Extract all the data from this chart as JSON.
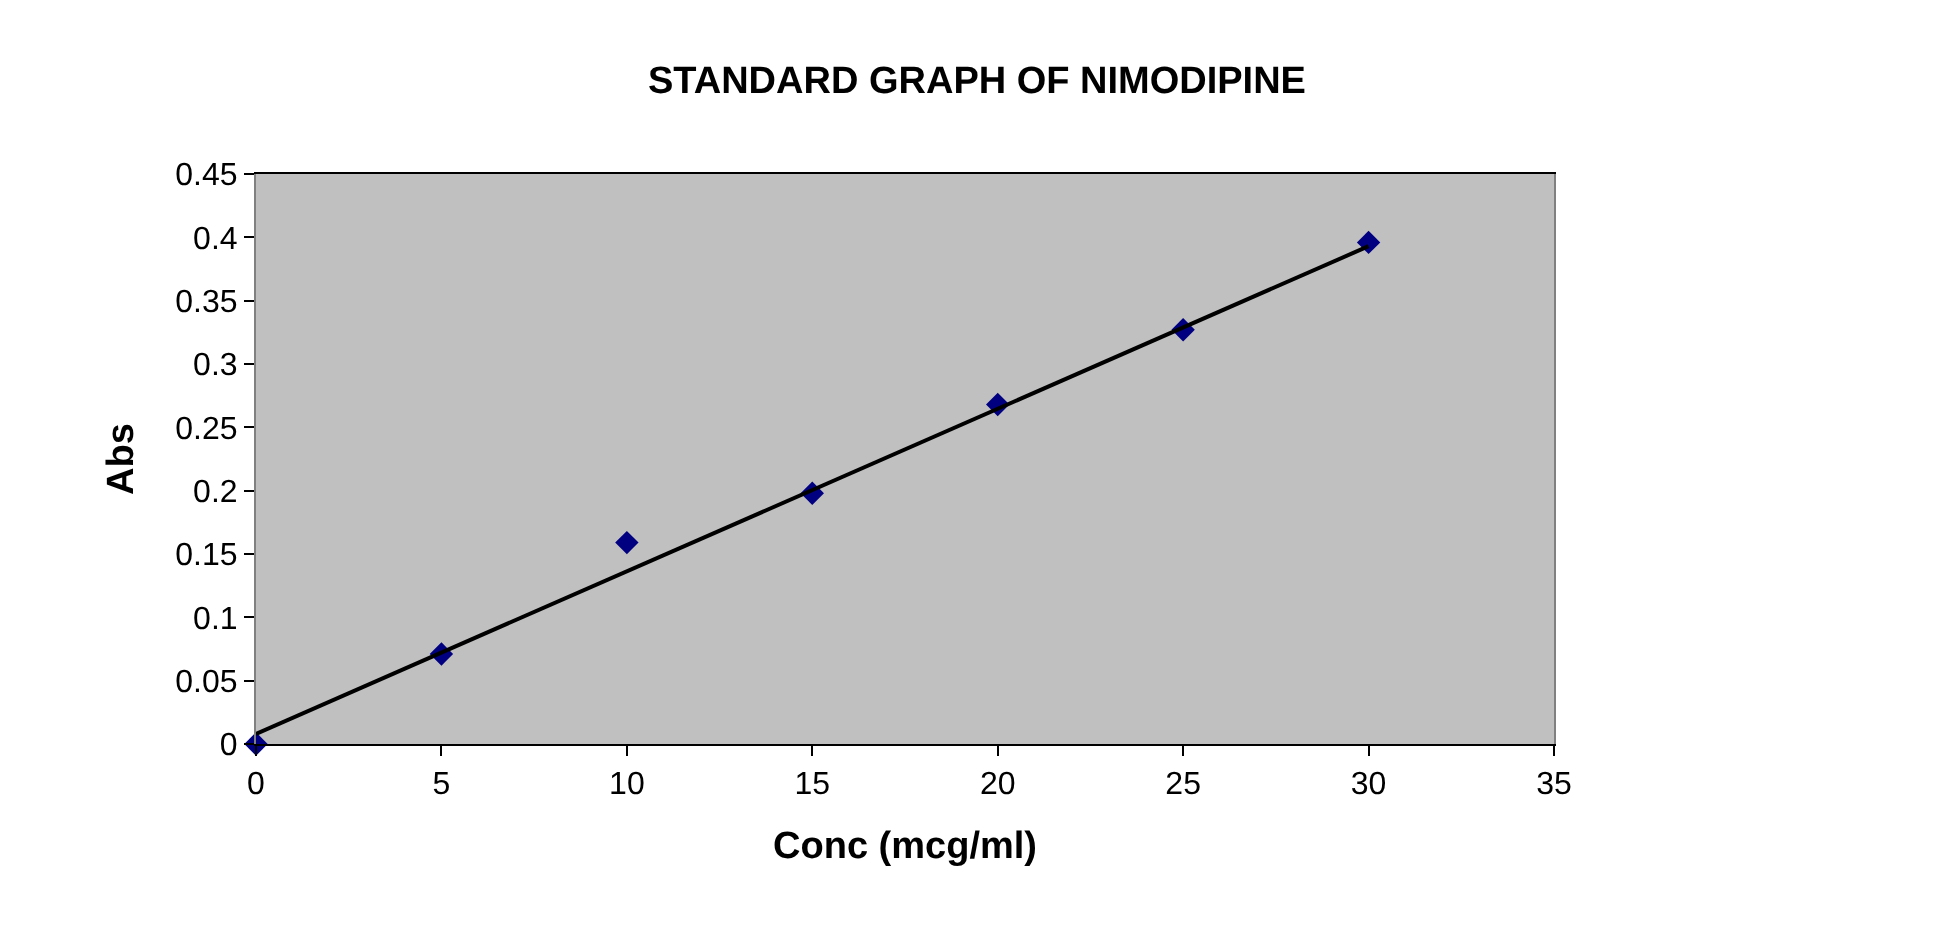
{
  "chart_data": {
    "type": "scatter",
    "title": "STANDARD GRAPH OF NIMODIPINE",
    "xlabel": "Conc (mcg/ml)",
    "ylabel": "Abs",
    "x": [
      0,
      5,
      10,
      15,
      20,
      25,
      30
    ],
    "series": [
      {
        "color": "#000080",
        "values": [
          0,
          0.071,
          0.159,
          0.198,
          0.268,
          0.327,
          0.396
        ],
        "marker": "diamond"
      },
      {
        "type": "line",
        "color": "#000000",
        "x": [
          0,
          30
        ],
        "values": [
          0.008,
          0.393
        ],
        "marker": "none",
        "line_style": "solid"
      }
    ],
    "xlim": [
      0,
      35
    ],
    "xticks": [
      0,
      5,
      10,
      15,
      20,
      25,
      30,
      35
    ],
    "ylim": [
      0,
      0.45
    ],
    "yticks": [
      0,
      0.05,
      0.1,
      0.15,
      0.2,
      0.25,
      0.3,
      0.35,
      0.4,
      0.45
    ],
    "grid": false
  }
}
